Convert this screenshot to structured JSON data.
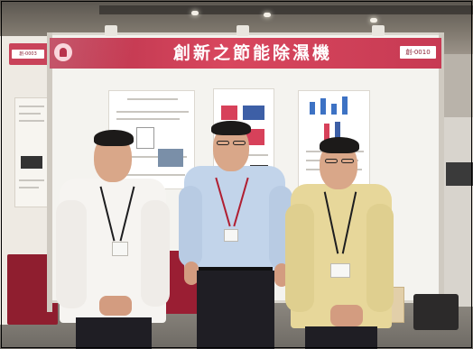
{
  "booth": {
    "title": "創新之節能除濕機",
    "number_right": "創-0010",
    "number_left": "創-0003"
  },
  "colors": {
    "header_red": "#c73a53",
    "booth_panel": "#f4f3ef",
    "table_red": "#9a1e33",
    "shirt_white": "#f6f4f1",
    "shirt_blue": "#c2d4ea",
    "shirt_yellow": "#e7d79a"
  },
  "scene": {
    "people_count": 3,
    "setting": "exhibition booth"
  }
}
